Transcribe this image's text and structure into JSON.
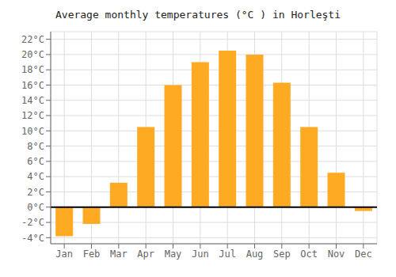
{
  "chart_data": {
    "type": "bar",
    "title": "Average monthly temperatures (°C ) in Horleşti",
    "categories": [
      "Jan",
      "Feb",
      "Mar",
      "Apr",
      "May",
      "Jun",
      "Jul",
      "Aug",
      "Sep",
      "Oct",
      "Nov",
      "Dec"
    ],
    "values": [
      -3.8,
      -2.2,
      3.2,
      10.5,
      16.0,
      19.0,
      20.5,
      20.0,
      16.3,
      10.5,
      4.5,
      -0.5
    ],
    "color": "#FFAA22",
    "ylim": [
      -4.8,
      23.0
    ],
    "yticks": [
      {
        "value": 22,
        "label": "22°C"
      },
      {
        "value": 20,
        "label": "20°C"
      },
      {
        "value": 18,
        "label": "18°C"
      },
      {
        "value": 16,
        "label": "16°C"
      },
      {
        "value": 14,
        "label": "14°C"
      },
      {
        "value": 12,
        "label": "12°C"
      },
      {
        "value": 10,
        "label": "10°C"
      },
      {
        "value": 8,
        "label": "8°C"
      },
      {
        "value": 6,
        "label": "6°C"
      },
      {
        "value": 4,
        "label": "4°C"
      },
      {
        "value": 2,
        "label": "2°C"
      },
      {
        "value": 0,
        "label": "0°C"
      },
      {
        "value": -2,
        "label": "-2°C"
      },
      {
        "value": -4,
        "label": "-4°C"
      }
    ],
    "grid": true
  }
}
